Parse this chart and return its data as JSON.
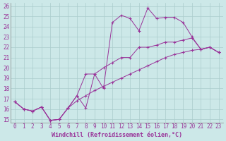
{
  "background_color": "#cce8e8",
  "line_color": "#993399",
  "xlabel": "Windchill (Refroidissement éolien,°C)",
  "xlabel_fontsize": 6.0,
  "tick_fontsize": 5.5,
  "xlim": [
    -0.5,
    23.5
  ],
  "ylim": [
    14.7,
    26.3
  ],
  "yticks": [
    15,
    16,
    17,
    18,
    19,
    20,
    21,
    22,
    23,
    24,
    25,
    26
  ],
  "xticks": [
    0,
    1,
    2,
    3,
    4,
    5,
    6,
    7,
    8,
    9,
    10,
    11,
    12,
    13,
    14,
    15,
    16,
    17,
    18,
    19,
    20,
    21,
    22,
    23
  ],
  "series1": [
    [
      0,
      16.7
    ],
    [
      1,
      16.0
    ],
    [
      2,
      15.8
    ],
    [
      3,
      16.2
    ],
    [
      4,
      14.9
    ],
    [
      5,
      15.0
    ],
    [
      6,
      16.1
    ],
    [
      7,
      17.3
    ],
    [
      8,
      16.1
    ],
    [
      9,
      19.4
    ],
    [
      10,
      18.0
    ],
    [
      11,
      24.4
    ],
    [
      12,
      25.1
    ],
    [
      13,
      24.8
    ],
    [
      14,
      23.6
    ],
    [
      15,
      25.8
    ],
    [
      16,
      24.8
    ],
    [
      17,
      24.9
    ],
    [
      18,
      24.9
    ],
    [
      19,
      24.4
    ],
    [
      20,
      23.0
    ],
    [
      21,
      21.8
    ],
    [
      22,
      22.0
    ],
    [
      23,
      21.5
    ]
  ],
  "series2": [
    [
      0,
      16.7
    ],
    [
      1,
      16.0
    ],
    [
      2,
      15.8
    ],
    [
      3,
      16.2
    ],
    [
      4,
      14.9
    ],
    [
      5,
      15.0
    ],
    [
      6,
      16.1
    ],
    [
      7,
      17.3
    ],
    [
      8,
      19.4
    ],
    [
      9,
      19.4
    ],
    [
      10,
      20.0
    ],
    [
      11,
      20.5
    ],
    [
      12,
      21.0
    ],
    [
      13,
      21.0
    ],
    [
      14,
      22.0
    ],
    [
      15,
      22.0
    ],
    [
      16,
      22.2
    ],
    [
      17,
      22.5
    ],
    [
      18,
      22.5
    ],
    [
      19,
      22.7
    ],
    [
      20,
      22.9
    ],
    [
      21,
      21.8
    ],
    [
      22,
      22.0
    ],
    [
      23,
      21.5
    ]
  ],
  "series3": [
    [
      0,
      16.7
    ],
    [
      1,
      16.0
    ],
    [
      2,
      15.8
    ],
    [
      3,
      16.2
    ],
    [
      4,
      14.9
    ],
    [
      5,
      15.0
    ],
    [
      6,
      16.1
    ],
    [
      7,
      16.8
    ],
    [
      8,
      17.3
    ],
    [
      9,
      17.8
    ],
    [
      10,
      18.2
    ],
    [
      11,
      18.6
    ],
    [
      12,
      19.0
    ],
    [
      13,
      19.4
    ],
    [
      14,
      19.8
    ],
    [
      15,
      20.2
    ],
    [
      16,
      20.6
    ],
    [
      17,
      21.0
    ],
    [
      18,
      21.3
    ],
    [
      19,
      21.5
    ],
    [
      20,
      21.7
    ],
    [
      21,
      21.8
    ],
    [
      22,
      22.0
    ],
    [
      23,
      21.5
    ]
  ]
}
